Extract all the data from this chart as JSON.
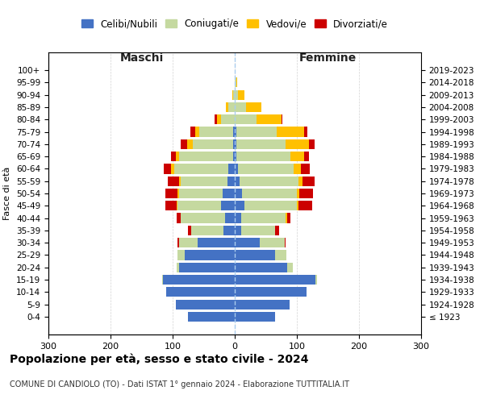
{
  "age_groups": [
    "100+",
    "95-99",
    "90-94",
    "85-89",
    "80-84",
    "75-79",
    "70-74",
    "65-69",
    "60-64",
    "55-59",
    "50-54",
    "45-49",
    "40-44",
    "35-39",
    "30-34",
    "25-29",
    "20-24",
    "15-19",
    "10-14",
    "5-9",
    "0-4"
  ],
  "birth_years": [
    "≤ 1923",
    "1924-1928",
    "1929-1933",
    "1934-1938",
    "1939-1943",
    "1944-1948",
    "1949-1953",
    "1954-1958",
    "1959-1963",
    "1964-1968",
    "1969-1973",
    "1974-1978",
    "1979-1983",
    "1984-1988",
    "1989-1993",
    "1994-1998",
    "1999-2003",
    "2004-2008",
    "2009-2013",
    "2014-2018",
    "2019-2023"
  ],
  "male": {
    "celibi": [
      0,
      0,
      0,
      0,
      0,
      2,
      2,
      2,
      10,
      12,
      20,
      22,
      15,
      18,
      60,
      80,
      90,
      115,
      110,
      95,
      75
    ],
    "coniugati": [
      0,
      0,
      2,
      10,
      22,
      55,
      65,
      88,
      88,
      75,
      70,
      70,
      72,
      52,
      30,
      12,
      4,
      2,
      0,
      0,
      0
    ],
    "vedovi": [
      0,
      0,
      2,
      4,
      6,
      6,
      10,
      5,
      4,
      3,
      2,
      2,
      0,
      0,
      0,
      0,
      0,
      0,
      0,
      0,
      0
    ],
    "divorziati": [
      0,
      0,
      0,
      0,
      4,
      8,
      10,
      8,
      12,
      18,
      20,
      18,
      6,
      5,
      2,
      0,
      0,
      0,
      0,
      0,
      0
    ]
  },
  "female": {
    "nubili": [
      0,
      0,
      0,
      0,
      0,
      2,
      2,
      2,
      5,
      8,
      12,
      15,
      10,
      10,
      40,
      65,
      85,
      130,
      115,
      88,
      65
    ],
    "coniugate": [
      0,
      2,
      5,
      18,
      35,
      65,
      80,
      88,
      90,
      95,
      88,
      85,
      72,
      55,
      40,
      18,
      8,
      2,
      0,
      0,
      0
    ],
    "vedove": [
      0,
      2,
      10,
      25,
      40,
      45,
      38,
      22,
      12,
      6,
      4,
      3,
      2,
      0,
      0,
      0,
      0,
      0,
      0,
      0,
      0
    ],
    "divorziate": [
      0,
      0,
      0,
      0,
      2,
      5,
      8,
      8,
      14,
      20,
      22,
      22,
      6,
      6,
      2,
      0,
      0,
      0,
      0,
      0,
      0
    ]
  },
  "colors": {
    "celibi": "#4472c4",
    "coniugati": "#c5d9a0",
    "vedovi": "#ffc000",
    "divorziati": "#cc0000"
  },
  "xlim": 300,
  "title": "Popolazione per età, sesso e stato civile - 2024",
  "subtitle": "COMUNE DI CANDIOLO (TO) - Dati ISTAT 1° gennaio 2024 - Elaborazione TUTTITALIA.IT",
  "ylabel_left": "Fasce di età",
  "xlabel_left": "Maschi",
  "xlabel_right": "Femmine",
  "legend_labels": [
    "Celibi/Nubili",
    "Coniugati/e",
    "Vedovi/e",
    "Divorziati/e"
  ],
  "xticks": [
    -300,
    -200,
    -100,
    0,
    100,
    200,
    300
  ],
  "xtick_labels": [
    "300",
    "200",
    "100",
    "0",
    "100",
    "200",
    "300"
  ]
}
